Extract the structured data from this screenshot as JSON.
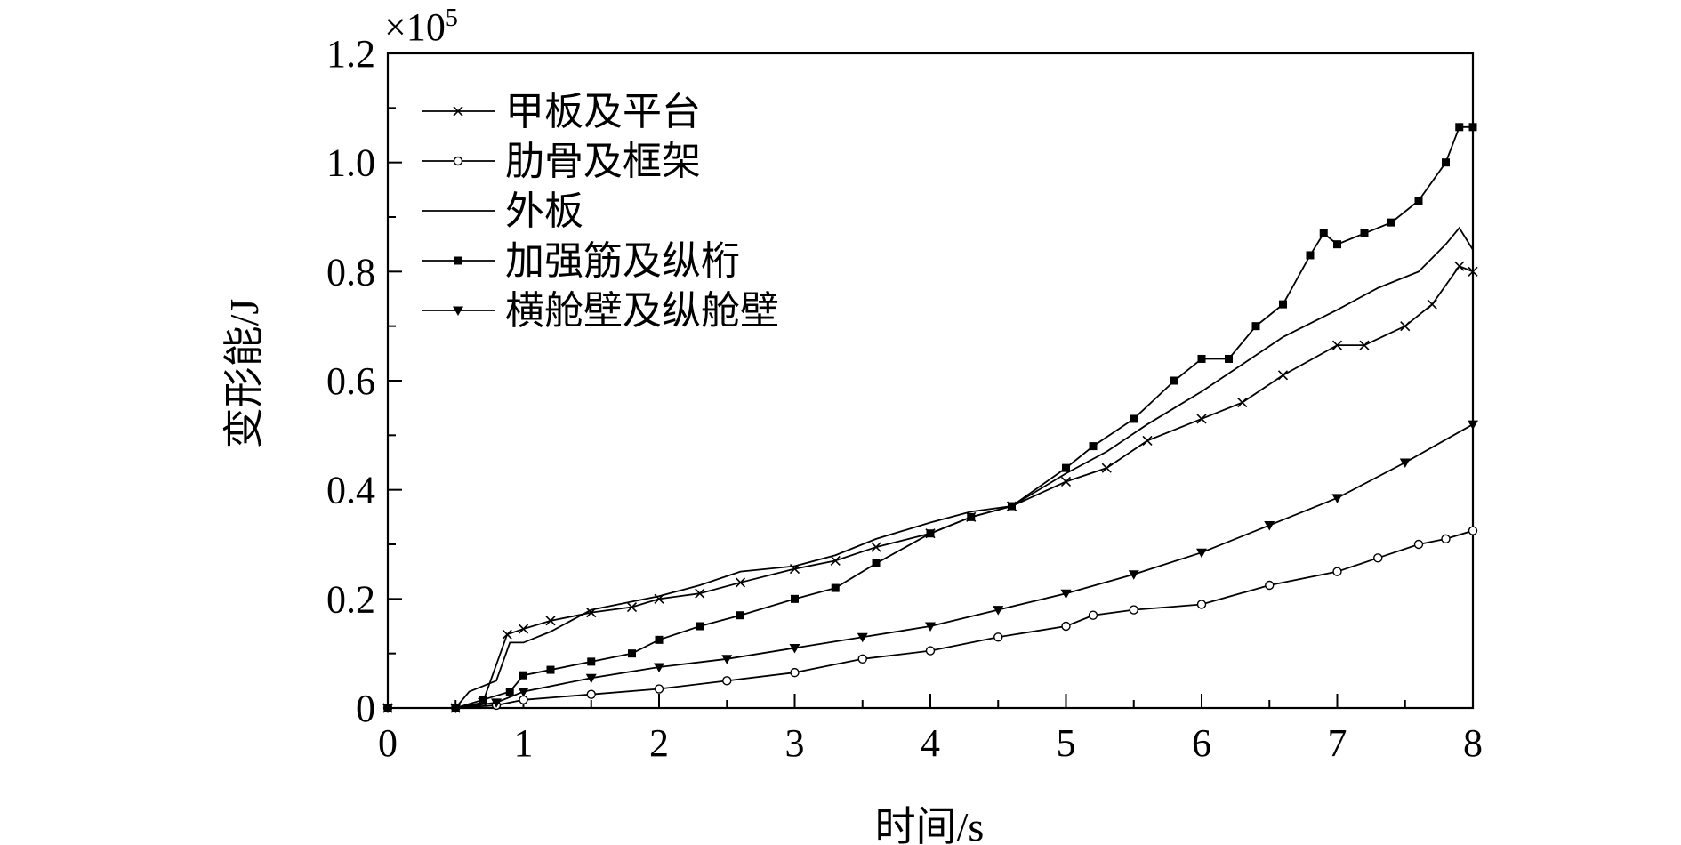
{
  "chart_data": {
    "type": "line",
    "xlabel": "时间/s",
    "ylabel": "变形能/J",
    "y_multiplier_label": "×10",
    "y_multiplier_exponent": "5",
    "xlim": [
      0,
      8
    ],
    "ylim": [
      0,
      1.2
    ],
    "x_ticks": [
      "0",
      "1",
      "2",
      "3",
      "4",
      "5",
      "6",
      "7",
      "8"
    ],
    "y_ticks": [
      "0",
      "0.2",
      "0.4",
      "0.6",
      "0.8",
      "1.0",
      "1.2"
    ],
    "y_tick_values": [
      0,
      0.2,
      0.4,
      0.6,
      0.8,
      1.0,
      1.2
    ],
    "legend_position": "top-left",
    "series": [
      {
        "name": "甲板及平台",
        "marker": "x",
        "x": [
          0,
          0.5,
          0.7,
          0.88,
          1.0,
          1.2,
          1.5,
          1.8,
          2.0,
          2.3,
          2.6,
          3.0,
          3.3,
          3.6,
          4.0,
          4.3,
          4.6,
          5.0,
          5.3,
          5.6,
          6.0,
          6.3,
          6.6,
          7.0,
          7.2,
          7.5,
          7.7,
          7.9,
          8.0
        ],
        "y": [
          0,
          0,
          0.01,
          0.135,
          0.145,
          0.16,
          0.175,
          0.185,
          0.2,
          0.21,
          0.23,
          0.255,
          0.27,
          0.295,
          0.32,
          0.35,
          0.37,
          0.415,
          0.44,
          0.49,
          0.53,
          0.56,
          0.61,
          0.665,
          0.665,
          0.7,
          0.74,
          0.81,
          0.8
        ]
      },
      {
        "name": "肋骨及框架",
        "marker": "o",
        "x": [
          0,
          0.5,
          0.8,
          1.0,
          1.5,
          2.0,
          2.5,
          3.0,
          3.5,
          4.0,
          4.5,
          5.0,
          5.2,
          5.5,
          6.0,
          6.5,
          7.0,
          7.3,
          7.6,
          7.8,
          8.0
        ],
        "y": [
          0,
          0,
          0.005,
          0.015,
          0.025,
          0.035,
          0.05,
          0.065,
          0.09,
          0.105,
          0.13,
          0.15,
          0.17,
          0.18,
          0.19,
          0.225,
          0.25,
          0.275,
          0.3,
          0.31,
          0.325
        ]
      },
      {
        "name": "外板",
        "marker": "none",
        "x": [
          0,
          0.5,
          0.6,
          0.8,
          0.9,
          1.0,
          1.2,
          1.5,
          1.8,
          2.0,
          2.3,
          2.6,
          3.0,
          3.3,
          3.6,
          4.0,
          4.3,
          4.6,
          5.0,
          5.3,
          5.6,
          6.0,
          6.3,
          6.6,
          7.0,
          7.3,
          7.6,
          7.8,
          7.9,
          8.0
        ],
        "y": [
          0,
          0,
          0.03,
          0.05,
          0.12,
          0.12,
          0.14,
          0.18,
          0.195,
          0.205,
          0.225,
          0.25,
          0.26,
          0.28,
          0.31,
          0.34,
          0.36,
          0.37,
          0.43,
          0.47,
          0.52,
          0.58,
          0.63,
          0.68,
          0.73,
          0.77,
          0.8,
          0.85,
          0.88,
          0.84
        ]
      },
      {
        "name": "加强筋及纵桁",
        "marker": "square",
        "x": [
          0,
          0.5,
          0.7,
          0.9,
          1.0,
          1.2,
          1.5,
          1.8,
          2.0,
          2.3,
          2.6,
          3.0,
          3.3,
          3.6,
          4.0,
          4.3,
          4.6,
          5.0,
          5.2,
          5.5,
          5.8,
          6.0,
          6.2,
          6.4,
          6.6,
          6.8,
          6.9,
          7.0,
          7.2,
          7.4,
          7.6,
          7.8,
          7.9,
          8.0
        ],
        "y": [
          0,
          0,
          0.015,
          0.03,
          0.06,
          0.07,
          0.085,
          0.1,
          0.125,
          0.15,
          0.17,
          0.2,
          0.22,
          0.265,
          0.32,
          0.35,
          0.37,
          0.44,
          0.48,
          0.53,
          0.6,
          0.64,
          0.64,
          0.7,
          0.74,
          0.83,
          0.87,
          0.85,
          0.87,
          0.89,
          0.93,
          1.0,
          1.065,
          1.065
        ]
      },
      {
        "name": "横舱壁及纵舱壁",
        "marker": "triangle-down",
        "x": [
          0,
          0.5,
          0.8,
          1.0,
          1.5,
          2.0,
          2.5,
          3.0,
          3.5,
          4.0,
          4.5,
          5.0,
          5.5,
          6.0,
          6.5,
          7.0,
          7.5,
          8.0
        ],
        "y": [
          0,
          0,
          0.01,
          0.03,
          0.055,
          0.075,
          0.09,
          0.11,
          0.13,
          0.15,
          0.18,
          0.21,
          0.245,
          0.285,
          0.335,
          0.385,
          0.45,
          0.52
        ]
      }
    ]
  }
}
